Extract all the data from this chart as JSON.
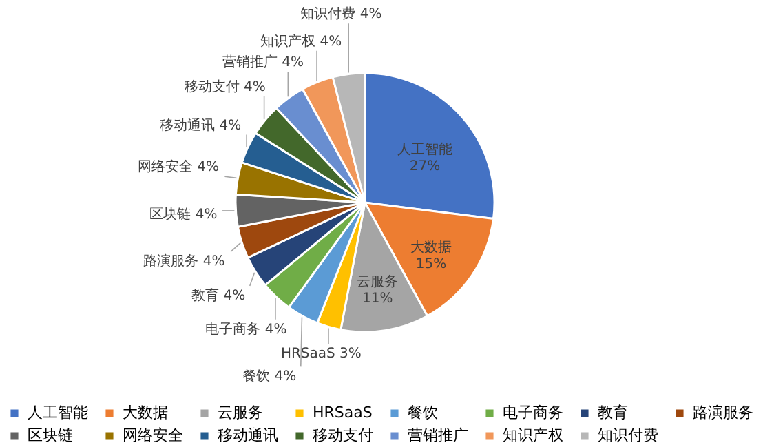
{
  "chart_data": {
    "type": "pie",
    "categories": [
      "人工智能",
      "大数据",
      "云服务",
      "HRSaaS",
      "餐饮",
      "电子商务",
      "教育",
      "路演服务",
      "区块链",
      "网络安全",
      "移动通讯",
      "移动支付",
      "营销推广",
      "知识产权",
      "知识付费"
    ],
    "values": [
      27,
      15,
      11,
      3,
      4,
      4,
      4,
      4,
      4,
      4,
      4,
      4,
      4,
      4,
      4
    ],
    "value_labels": [
      "27%",
      "15%",
      "11%",
      "3%",
      "4%",
      "4%",
      "4%",
      "4%",
      "4%",
      "4%",
      "4%",
      "4%",
      "4%",
      "4%",
      "4%"
    ],
    "colors": [
      "#4472c4",
      "#ed7d31",
      "#a5a5a5",
      "#ffc000",
      "#5b9bd5",
      "#70ad47",
      "#264478",
      "#9e480e",
      "#636363",
      "#997300",
      "#255e91",
      "#43682b",
      "#698ed0",
      "#f1975a",
      "#b7b7b7"
    ],
    "legend": "bottom"
  }
}
